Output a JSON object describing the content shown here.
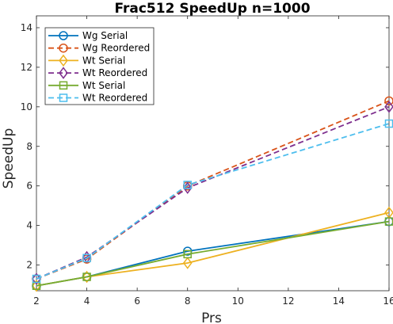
{
  "chart_data": {
    "type": "line",
    "title": "Frac512 SpeedUp n=1000",
    "xlabel": "Prs",
    "ylabel": "SpeedUp",
    "xlim": [
      2,
      16
    ],
    "ylim": [
      0.7,
      14.6
    ],
    "xticks": [
      2,
      4,
      6,
      8,
      10,
      12,
      14,
      16
    ],
    "yticks": [
      2,
      4,
      6,
      8,
      10,
      12,
      14
    ],
    "grid": false,
    "legend_position": "top-left",
    "x": [
      2,
      4,
      8,
      16
    ],
    "series": [
      {
        "name": "Wg Serial",
        "values": [
          0.95,
          1.4,
          2.7,
          4.2
        ],
        "color": "#0072BD",
        "dash": "solid",
        "marker": "circle"
      },
      {
        "name": "Wg Reordered",
        "values": [
          1.3,
          2.3,
          6.0,
          10.3
        ],
        "color": "#D95319",
        "dash": "dashed",
        "marker": "circle"
      },
      {
        "name": "Wt Serial",
        "values": [
          0.95,
          1.4,
          2.1,
          4.65
        ],
        "color": "#EDB120",
        "dash": "solid",
        "marker": "diamond"
      },
      {
        "name": "Wt Reordered",
        "values": [
          1.3,
          2.4,
          5.9,
          10.0
        ],
        "color": "#7E2F8E",
        "dash": "dashed",
        "marker": "diamond"
      },
      {
        "name": "Wt Serial",
        "values": [
          0.95,
          1.4,
          2.55,
          4.2
        ],
        "color": "#77AC30",
        "dash": "solid",
        "marker": "square"
      },
      {
        "name": "Wt Reordered",
        "values": [
          1.3,
          2.35,
          6.05,
          9.15
        ],
        "color": "#4DBEEE",
        "dash": "dashed",
        "marker": "square"
      }
    ]
  }
}
